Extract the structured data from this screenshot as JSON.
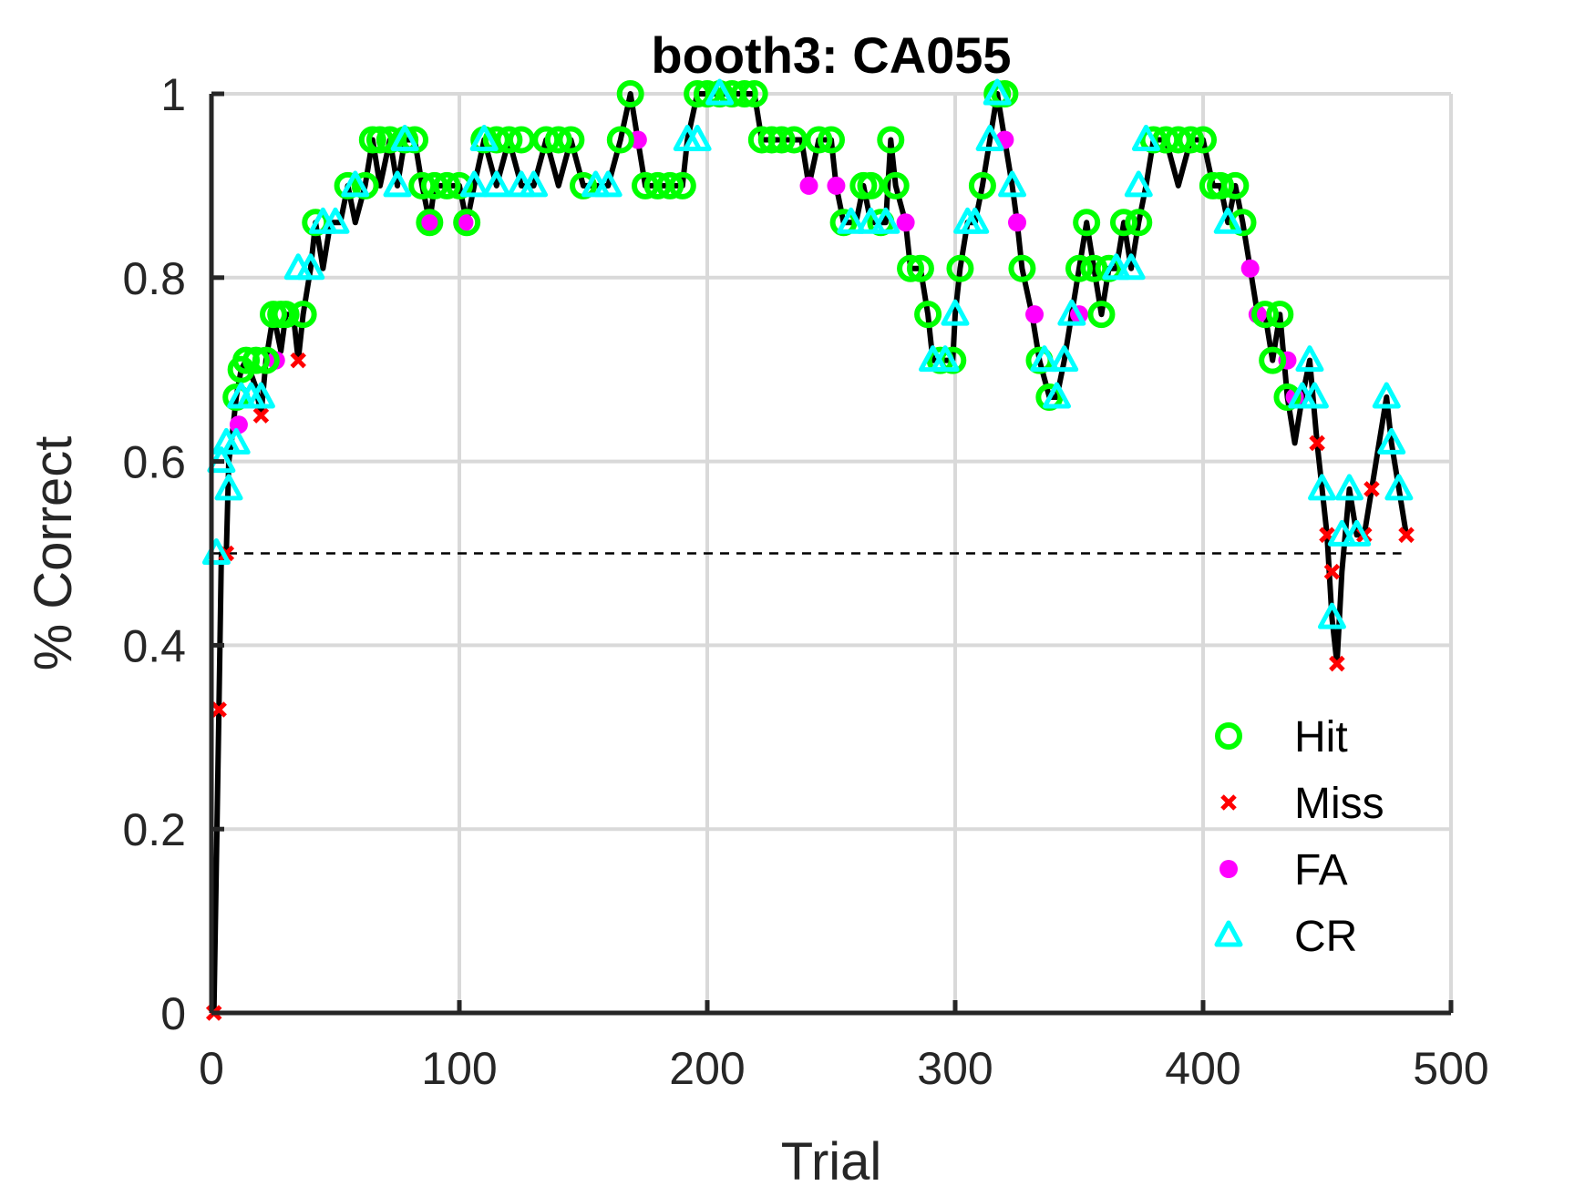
{
  "chart_data": {
    "type": "line",
    "title": "booth3: CA055",
    "xlabel": "Trial",
    "ylabel": "% Correct",
    "xlim": [
      0,
      500
    ],
    "ylim": [
      0,
      1
    ],
    "xticks": [
      0,
      100,
      200,
      300,
      400,
      500
    ],
    "yticks": [
      0,
      0.2,
      0.4,
      0.6,
      0.8,
      1
    ],
    "xtick_labels": [
      "0",
      "100",
      "200",
      "300",
      "400",
      "500"
    ],
    "ytick_labels": [
      "0",
      "0.2",
      "0.4",
      "0.6",
      "0.8",
      "1"
    ],
    "grid": true,
    "legend_position": "bottom-right",
    "chance_line": {
      "y": 0.5,
      "x": [
        0,
        480
      ],
      "style": "dashed"
    },
    "line_color": "#000000",
    "colors": {
      "Hit": "#00ff00",
      "Miss": "#ff0000",
      "FA": "#ff00ff",
      "CR": "#00ffff"
    },
    "legend": [
      {
        "label": "Hit",
        "marker": "circle"
      },
      {
        "label": "Miss",
        "marker": "x"
      },
      {
        "label": "FA",
        "marker": "dot"
      },
      {
        "label": "CR",
        "marker": "triangle"
      }
    ],
    "running_line": [
      [
        1,
        0
      ],
      [
        3,
        0.33
      ],
      [
        4,
        0.5
      ],
      [
        6,
        0.5
      ],
      [
        7,
        0.6
      ],
      [
        8,
        0.62
      ],
      [
        10,
        0.67
      ],
      [
        12,
        0.7
      ],
      [
        14,
        0.71
      ],
      [
        18,
        0.68
      ],
      [
        20,
        0.65
      ],
      [
        22,
        0.71
      ],
      [
        25,
        0.76
      ],
      [
        28,
        0.72
      ],
      [
        30,
        0.76
      ],
      [
        33,
        0.76
      ],
      [
        35,
        0.71
      ],
      [
        37,
        0.76
      ],
      [
        40,
        0.81
      ],
      [
        42,
        0.86
      ],
      [
        45,
        0.81
      ],
      [
        48,
        0.86
      ],
      [
        52,
        0.86
      ],
      [
        55,
        0.9
      ],
      [
        58,
        0.86
      ],
      [
        62,
        0.9
      ],
      [
        65,
        0.95
      ],
      [
        68,
        0.9
      ],
      [
        72,
        0.95
      ],
      [
        75,
        0.9
      ],
      [
        78,
        0.95
      ],
      [
        82,
        0.95
      ],
      [
        85,
        0.9
      ],
      [
        88,
        0.86
      ],
      [
        90,
        0.9
      ],
      [
        95,
        0.9
      ],
      [
        100,
        0.9
      ],
      [
        103,
        0.86
      ],
      [
        106,
        0.9
      ],
      [
        110,
        0.95
      ],
      [
        115,
        0.9
      ],
      [
        120,
        0.95
      ],
      [
        125,
        0.9
      ],
      [
        130,
        0.9
      ],
      [
        135,
        0.95
      ],
      [
        140,
        0.9
      ],
      [
        145,
        0.95
      ],
      [
        150,
        0.9
      ],
      [
        155,
        0.9
      ],
      [
        160,
        0.9
      ],
      [
        165,
        0.95
      ],
      [
        169,
        1
      ],
      [
        172,
        0.95
      ],
      [
        175,
        0.9
      ],
      [
        180,
        0.9
      ],
      [
        185,
        0.9
      ],
      [
        190,
        0.9
      ],
      [
        192,
        0.95
      ],
      [
        196,
        1
      ],
      [
        205,
        1
      ],
      [
        215,
        1
      ],
      [
        219,
        1
      ],
      [
        222,
        0.95
      ],
      [
        230,
        0.95
      ],
      [
        238,
        0.95
      ],
      [
        241,
        0.9
      ],
      [
        245,
        0.95
      ],
      [
        250,
        0.95
      ],
      [
        252,
        0.9
      ],
      [
        255,
        0.86
      ],
      [
        260,
        0.86
      ],
      [
        263,
        0.9
      ],
      [
        266,
        0.86
      ],
      [
        270,
        0.86
      ],
      [
        272,
        0.86
      ],
      [
        274,
        0.95
      ],
      [
        276,
        0.9
      ],
      [
        280,
        0.86
      ],
      [
        282,
        0.81
      ],
      [
        286,
        0.81
      ],
      [
        289,
        0.76
      ],
      [
        291,
        0.71
      ],
      [
        296,
        0.71
      ],
      [
        299,
        0.71
      ],
      [
        300,
        0.76
      ],
      [
        302,
        0.81
      ],
      [
        305,
        0.86
      ],
      [
        308,
        0.86
      ],
      [
        311,
        0.9
      ],
      [
        314,
        0.95
      ],
      [
        317,
        1
      ],
      [
        320,
        0.95
      ],
      [
        323,
        0.9
      ],
      [
        325,
        0.86
      ],
      [
        327,
        0.81
      ],
      [
        331,
        0.76
      ],
      [
        334,
        0.71
      ],
      [
        338,
        0.67
      ],
      [
        341,
        0.67
      ],
      [
        344,
        0.71
      ],
      [
        347,
        0.76
      ],
      [
        350,
        0.81
      ],
      [
        353,
        0.86
      ],
      [
        356,
        0.81
      ],
      [
        359,
        0.76
      ],
      [
        362,
        0.81
      ],
      [
        365,
        0.81
      ],
      [
        368,
        0.86
      ],
      [
        371,
        0.81
      ],
      [
        374,
        0.86
      ],
      [
        377,
        0.9
      ],
      [
        380,
        0.95
      ],
      [
        385,
        0.95
      ],
      [
        390,
        0.9
      ],
      [
        395,
        0.95
      ],
      [
        400,
        0.95
      ],
      [
        404,
        0.9
      ],
      [
        407,
        0.9
      ],
      [
        410,
        0.86
      ],
      [
        413,
        0.9
      ],
      [
        416,
        0.86
      ],
      [
        419,
        0.81
      ],
      [
        422,
        0.76
      ],
      [
        425,
        0.76
      ],
      [
        428,
        0.71
      ],
      [
        431,
        0.76
      ],
      [
        434,
        0.67
      ],
      [
        437,
        0.62
      ],
      [
        440,
        0.67
      ],
      [
        443,
        0.71
      ],
      [
        446,
        0.62
      ],
      [
        448,
        0.57
      ],
      [
        450,
        0.52
      ],
      [
        452,
        0.43
      ],
      [
        454,
        0.38
      ],
      [
        456,
        0.48
      ],
      [
        459,
        0.57
      ],
      [
        462,
        0.52
      ],
      [
        465,
        0.52
      ],
      [
        468,
        0.57
      ],
      [
        471,
        0.62
      ],
      [
        474,
        0.67
      ],
      [
        476,
        0.62
      ],
      [
        479,
        0.57
      ],
      [
        482,
        0.52
      ]
    ],
    "series": [
      {
        "name": "Hit",
        "points": [
          [
            10,
            0.67
          ],
          [
            12,
            0.7
          ],
          [
            14,
            0.71
          ],
          [
            18,
            0.71
          ],
          [
            22,
            0.71
          ],
          [
            25,
            0.76
          ],
          [
            28,
            0.76
          ],
          [
            30,
            0.76
          ],
          [
            37,
            0.76
          ],
          [
            42,
            0.86
          ],
          [
            55,
            0.9
          ],
          [
            62,
            0.9
          ],
          [
            65,
            0.95
          ],
          [
            68,
            0.95
          ],
          [
            72,
            0.95
          ],
          [
            78,
            0.95
          ],
          [
            82,
            0.95
          ],
          [
            85,
            0.9
          ],
          [
            88,
            0.86
          ],
          [
            90,
            0.9
          ],
          [
            95,
            0.9
          ],
          [
            100,
            0.9
          ],
          [
            103,
            0.86
          ],
          [
            110,
            0.95
          ],
          [
            115,
            0.95
          ],
          [
            120,
            0.95
          ],
          [
            125,
            0.95
          ],
          [
            135,
            0.95
          ],
          [
            140,
            0.95
          ],
          [
            145,
            0.95
          ],
          [
            150,
            0.9
          ],
          [
            165,
            0.95
          ],
          [
            169,
            1
          ],
          [
            175,
            0.9
          ],
          [
            180,
            0.9
          ],
          [
            185,
            0.9
          ],
          [
            190,
            0.9
          ],
          [
            196,
            1
          ],
          [
            200,
            1
          ],
          [
            205,
            1
          ],
          [
            210,
            1
          ],
          [
            215,
            1
          ],
          [
            219,
            1
          ],
          [
            222,
            0.95
          ],
          [
            226,
            0.95
          ],
          [
            230,
            0.95
          ],
          [
            235,
            0.95
          ],
          [
            245,
            0.95
          ],
          [
            250,
            0.95
          ],
          [
            255,
            0.86
          ],
          [
            263,
            0.9
          ],
          [
            266,
            0.9
          ],
          [
            270,
            0.86
          ],
          [
            274,
            0.95
          ],
          [
            276,
            0.9
          ],
          [
            282,
            0.81
          ],
          [
            286,
            0.81
          ],
          [
            289,
            0.76
          ],
          [
            294,
            0.71
          ],
          [
            299,
            0.71
          ],
          [
            302,
            0.81
          ],
          [
            311,
            0.9
          ],
          [
            317,
            1
          ],
          [
            320,
            1
          ],
          [
            327,
            0.81
          ],
          [
            334,
            0.71
          ],
          [
            338,
            0.67
          ],
          [
            350,
            0.81
          ],
          [
            353,
            0.86
          ],
          [
            356,
            0.81
          ],
          [
            359,
            0.76
          ],
          [
            362,
            0.81
          ],
          [
            368,
            0.86
          ],
          [
            374,
            0.86
          ],
          [
            380,
            0.95
          ],
          [
            385,
            0.95
          ],
          [
            390,
            0.95
          ],
          [
            395,
            0.95
          ],
          [
            400,
            0.95
          ],
          [
            404,
            0.9
          ],
          [
            407,
            0.9
          ],
          [
            413,
            0.9
          ],
          [
            416,
            0.86
          ],
          [
            425,
            0.76
          ],
          [
            428,
            0.71
          ],
          [
            431,
            0.76
          ],
          [
            434,
            0.67
          ]
        ]
      },
      {
        "name": "Miss",
        "points": [
          [
            1,
            0
          ],
          [
            3,
            0.33
          ],
          [
            6,
            0.5
          ],
          [
            20,
            0.65
          ],
          [
            35,
            0.71
          ],
          [
            446,
            0.62
          ],
          [
            450,
            0.52
          ],
          [
            452,
            0.48
          ],
          [
            454,
            0.38
          ],
          [
            465,
            0.52
          ],
          [
            468,
            0.57
          ],
          [
            482,
            0.52
          ]
        ]
      },
      {
        "name": "FA",
        "points": [
          [
            11,
            0.64
          ],
          [
            26,
            0.71
          ],
          [
            88,
            0.86
          ],
          [
            102,
            0.86
          ],
          [
            172,
            0.95
          ],
          [
            241,
            0.9
          ],
          [
            252,
            0.9
          ],
          [
            280,
            0.86
          ],
          [
            320,
            0.95
          ],
          [
            325,
            0.86
          ],
          [
            332,
            0.76
          ],
          [
            350,
            0.76
          ],
          [
            419,
            0.81
          ],
          [
            422,
            0.76
          ],
          [
            434,
            0.71
          ],
          [
            437,
            0.67
          ]
        ]
      },
      {
        "name": "CR",
        "points": [
          [
            2,
            0.5
          ],
          [
            4,
            0.6
          ],
          [
            6,
            0.62
          ],
          [
            7,
            0.57
          ],
          [
            10,
            0.62
          ],
          [
            12,
            0.67
          ],
          [
            16,
            0.67
          ],
          [
            20,
            0.67
          ],
          [
            35,
            0.81
          ],
          [
            40,
            0.81
          ],
          [
            45,
            0.86
          ],
          [
            50,
            0.86
          ],
          [
            58,
            0.9
          ],
          [
            75,
            0.9
          ],
          [
            78,
            0.95
          ],
          [
            106,
            0.9
          ],
          [
            110,
            0.95
          ],
          [
            115,
            0.9
          ],
          [
            125,
            0.9
          ],
          [
            130,
            0.9
          ],
          [
            155,
            0.9
          ],
          [
            160,
            0.9
          ],
          [
            192,
            0.95
          ],
          [
            196,
            0.95
          ],
          [
            205,
            1
          ],
          [
            258,
            0.86
          ],
          [
            266,
            0.86
          ],
          [
            272,
            0.86
          ],
          [
            291,
            0.71
          ],
          [
            296,
            0.71
          ],
          [
            300,
            0.76
          ],
          [
            305,
            0.86
          ],
          [
            308,
            0.86
          ],
          [
            314,
            0.95
          ],
          [
            317,
            1
          ],
          [
            323,
            0.9
          ],
          [
            336,
            0.71
          ],
          [
            341,
            0.67
          ],
          [
            344,
            0.71
          ],
          [
            347,
            0.76
          ],
          [
            365,
            0.81
          ],
          [
            371,
            0.81
          ],
          [
            374,
            0.9
          ],
          [
            377,
            0.95
          ],
          [
            410,
            0.86
          ],
          [
            440,
            0.67
          ],
          [
            443,
            0.71
          ],
          [
            445,
            0.67
          ],
          [
            448,
            0.57
          ],
          [
            452,
            0.43
          ],
          [
            456,
            0.52
          ],
          [
            459,
            0.57
          ],
          [
            462,
            0.52
          ],
          [
            474,
            0.67
          ],
          [
            476,
            0.62
          ],
          [
            479,
            0.57
          ]
        ]
      }
    ]
  }
}
